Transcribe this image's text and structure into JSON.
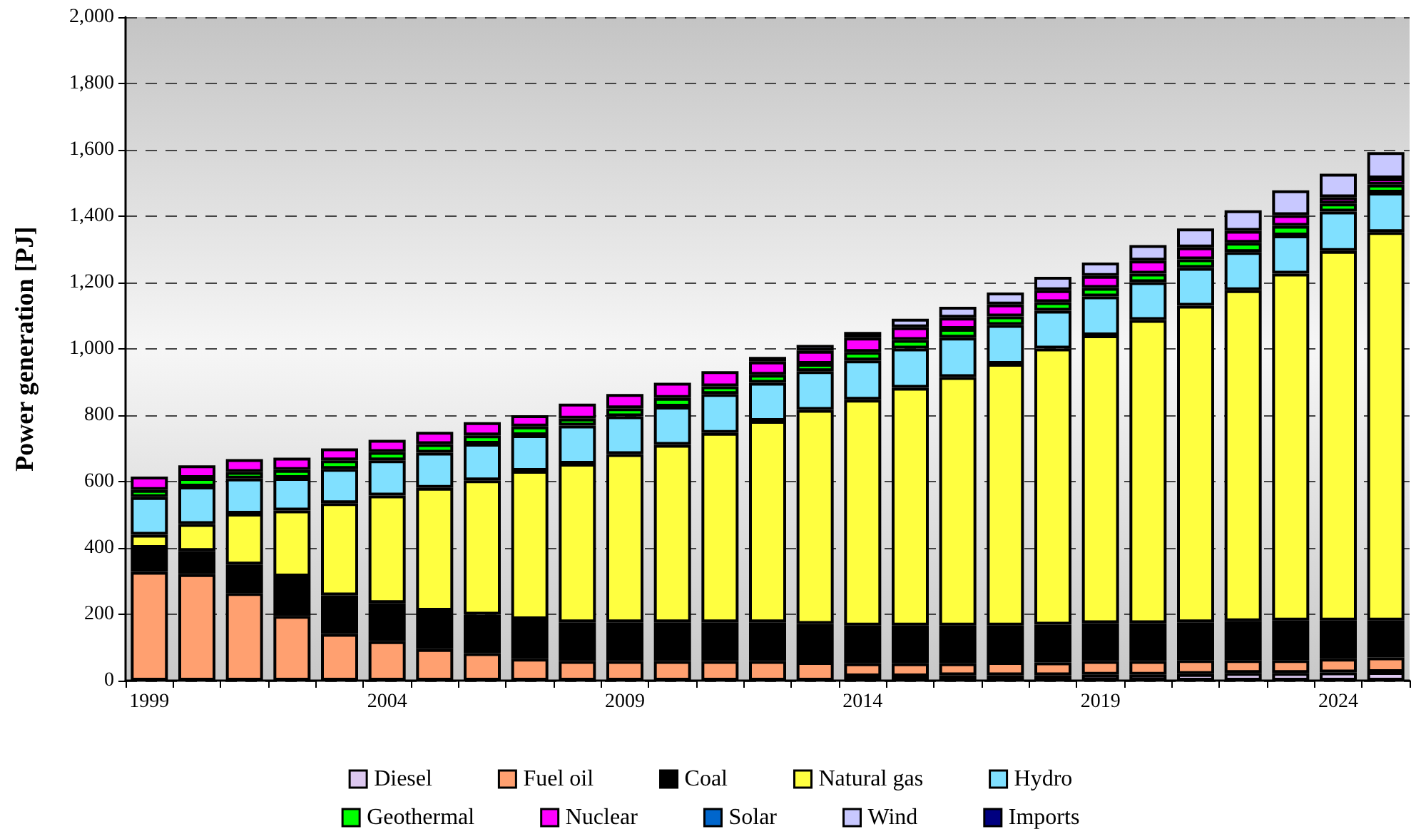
{
  "chart_data": {
    "type": "bar",
    "stacked": true,
    "ylabel": "Power generation [PJ]",
    "categories": [
      "1999",
      null,
      null,
      null,
      null,
      "2004",
      null,
      null,
      null,
      null,
      "2009",
      null,
      null,
      null,
      null,
      "2014",
      null,
      null,
      null,
      null,
      "2019",
      null,
      null,
      null,
      null,
      "2024",
      null
    ],
    "ylim": [
      0,
      2000
    ],
    "yticks": [
      0,
      200,
      400,
      600,
      800,
      {
        "value": 1000,
        "label": "1,000"
      },
      {
        "value": 1200,
        "label": "1,200"
      },
      {
        "value": 1400,
        "label": "1,400"
      },
      {
        "value": 1600,
        "label": "1,600"
      },
      {
        "value": 1800,
        "label": "1,800"
      },
      {
        "value": 2000,
        "label": "2,000"
      }
    ],
    "grid": "y",
    "legend": "bottom",
    "series": [
      {
        "name": "Diesel",
        "color": "#ddc8f0",
        "values": [
          0,
          0,
          0,
          0,
          0,
          0,
          0,
          0,
          0,
          0,
          0,
          0,
          0,
          0,
          0,
          13,
          13,
          16,
          16,
          16,
          18,
          18,
          20,
          23,
          23,
          25,
          26
        ]
      },
      {
        "name": "Fuel oil",
        "color": "#ffa070",
        "values": [
          328,
          321,
          264,
          195,
          141,
          119,
          95,
          83,
          66,
          59,
          59,
          59,
          59,
          59,
          56,
          39,
          39,
          36,
          40,
          39,
          41,
          41,
          42,
          39,
          39,
          41,
          44
        ]
      },
      {
        "name": "Coal",
        "color": "#000000",
        "values": [
          72,
          70,
          86,
          119,
          116,
          115,
          116,
          116,
          119,
          117,
          117,
          117,
          117,
          117,
          115,
          114,
          114,
          114,
          110,
          114,
          114,
          114,
          114,
          117,
          119,
          115,
          111
        ]
      },
      {
        "name": "Natural gas",
        "color": "#ffff40",
        "values": [
          40,
          81,
          153,
          199,
          278,
          324,
          370,
          405,
          447,
          478,
          507,
          535,
          571,
          607,
          645,
          681,
          717,
          749,
          789,
          832,
          868,
          914,
          954,
          998,
          1046,
          1114,
          1171
        ]
      },
      {
        "name": "Hydro",
        "color": "#80e0ff",
        "values": [
          113,
          113,
          106,
          98,
          103,
          106,
          106,
          110,
          108,
          115,
          114,
          115,
          117,
          115,
          117,
          118,
          118,
          119,
          117,
          114,
          117,
          114,
          114,
          115,
          115,
          119,
          119
        ]
      },
      {
        "name": "Geothermal",
        "color": "#00ff00",
        "values": [
          22,
          26,
          20,
          24,
          26,
          25,
          26,
          25,
          26,
          21,
          24,
          26,
          23,
          24,
          22,
          26,
          26,
          26,
          26,
          26,
          26,
          26,
          26,
          28,
          29,
          24,
          24
        ]
      },
      {
        "name": "Nuclear",
        "color": "#ff00ff",
        "values": [
          40,
          38,
          39,
          37,
          36,
          37,
          37,
          40,
          34,
          45,
          43,
          46,
          46,
          40,
          39,
          43,
          38,
          34,
          36,
          36,
          36,
          39,
          36,
          36,
          32,
          19,
          19
        ]
      },
      {
        "name": "Solar",
        "color": "#0066cc",
        "values": [
          0,
          0,
          0,
          0,
          0,
          0,
          0,
          0,
          0,
          0,
          0,
          0,
          0,
          0,
          0,
          0,
          0,
          0,
          0,
          0,
          0,
          0,
          0,
          0,
          0,
          0,
          0
        ]
      },
      {
        "name": "Wind",
        "color": "#c8c8ff",
        "values": [
          0,
          0,
          0,
          0,
          0,
          0,
          0,
          0,
          0,
          0,
          0,
          0,
          0,
          14,
          18,
          17,
          26,
          33,
          36,
          40,
          40,
          47,
          57,
          62,
          75,
          71,
          79
        ]
      },
      {
        "name": "Imports",
        "color": "#000080",
        "values": [
          0,
          0,
          0,
          0,
          0,
          0,
          0,
          0,
          0,
          0,
          0,
          0,
          0,
          0,
          0,
          0,
          0,
          0,
          0,
          0,
          0,
          0,
          0,
          0,
          0,
          0,
          0
        ]
      }
    ]
  }
}
